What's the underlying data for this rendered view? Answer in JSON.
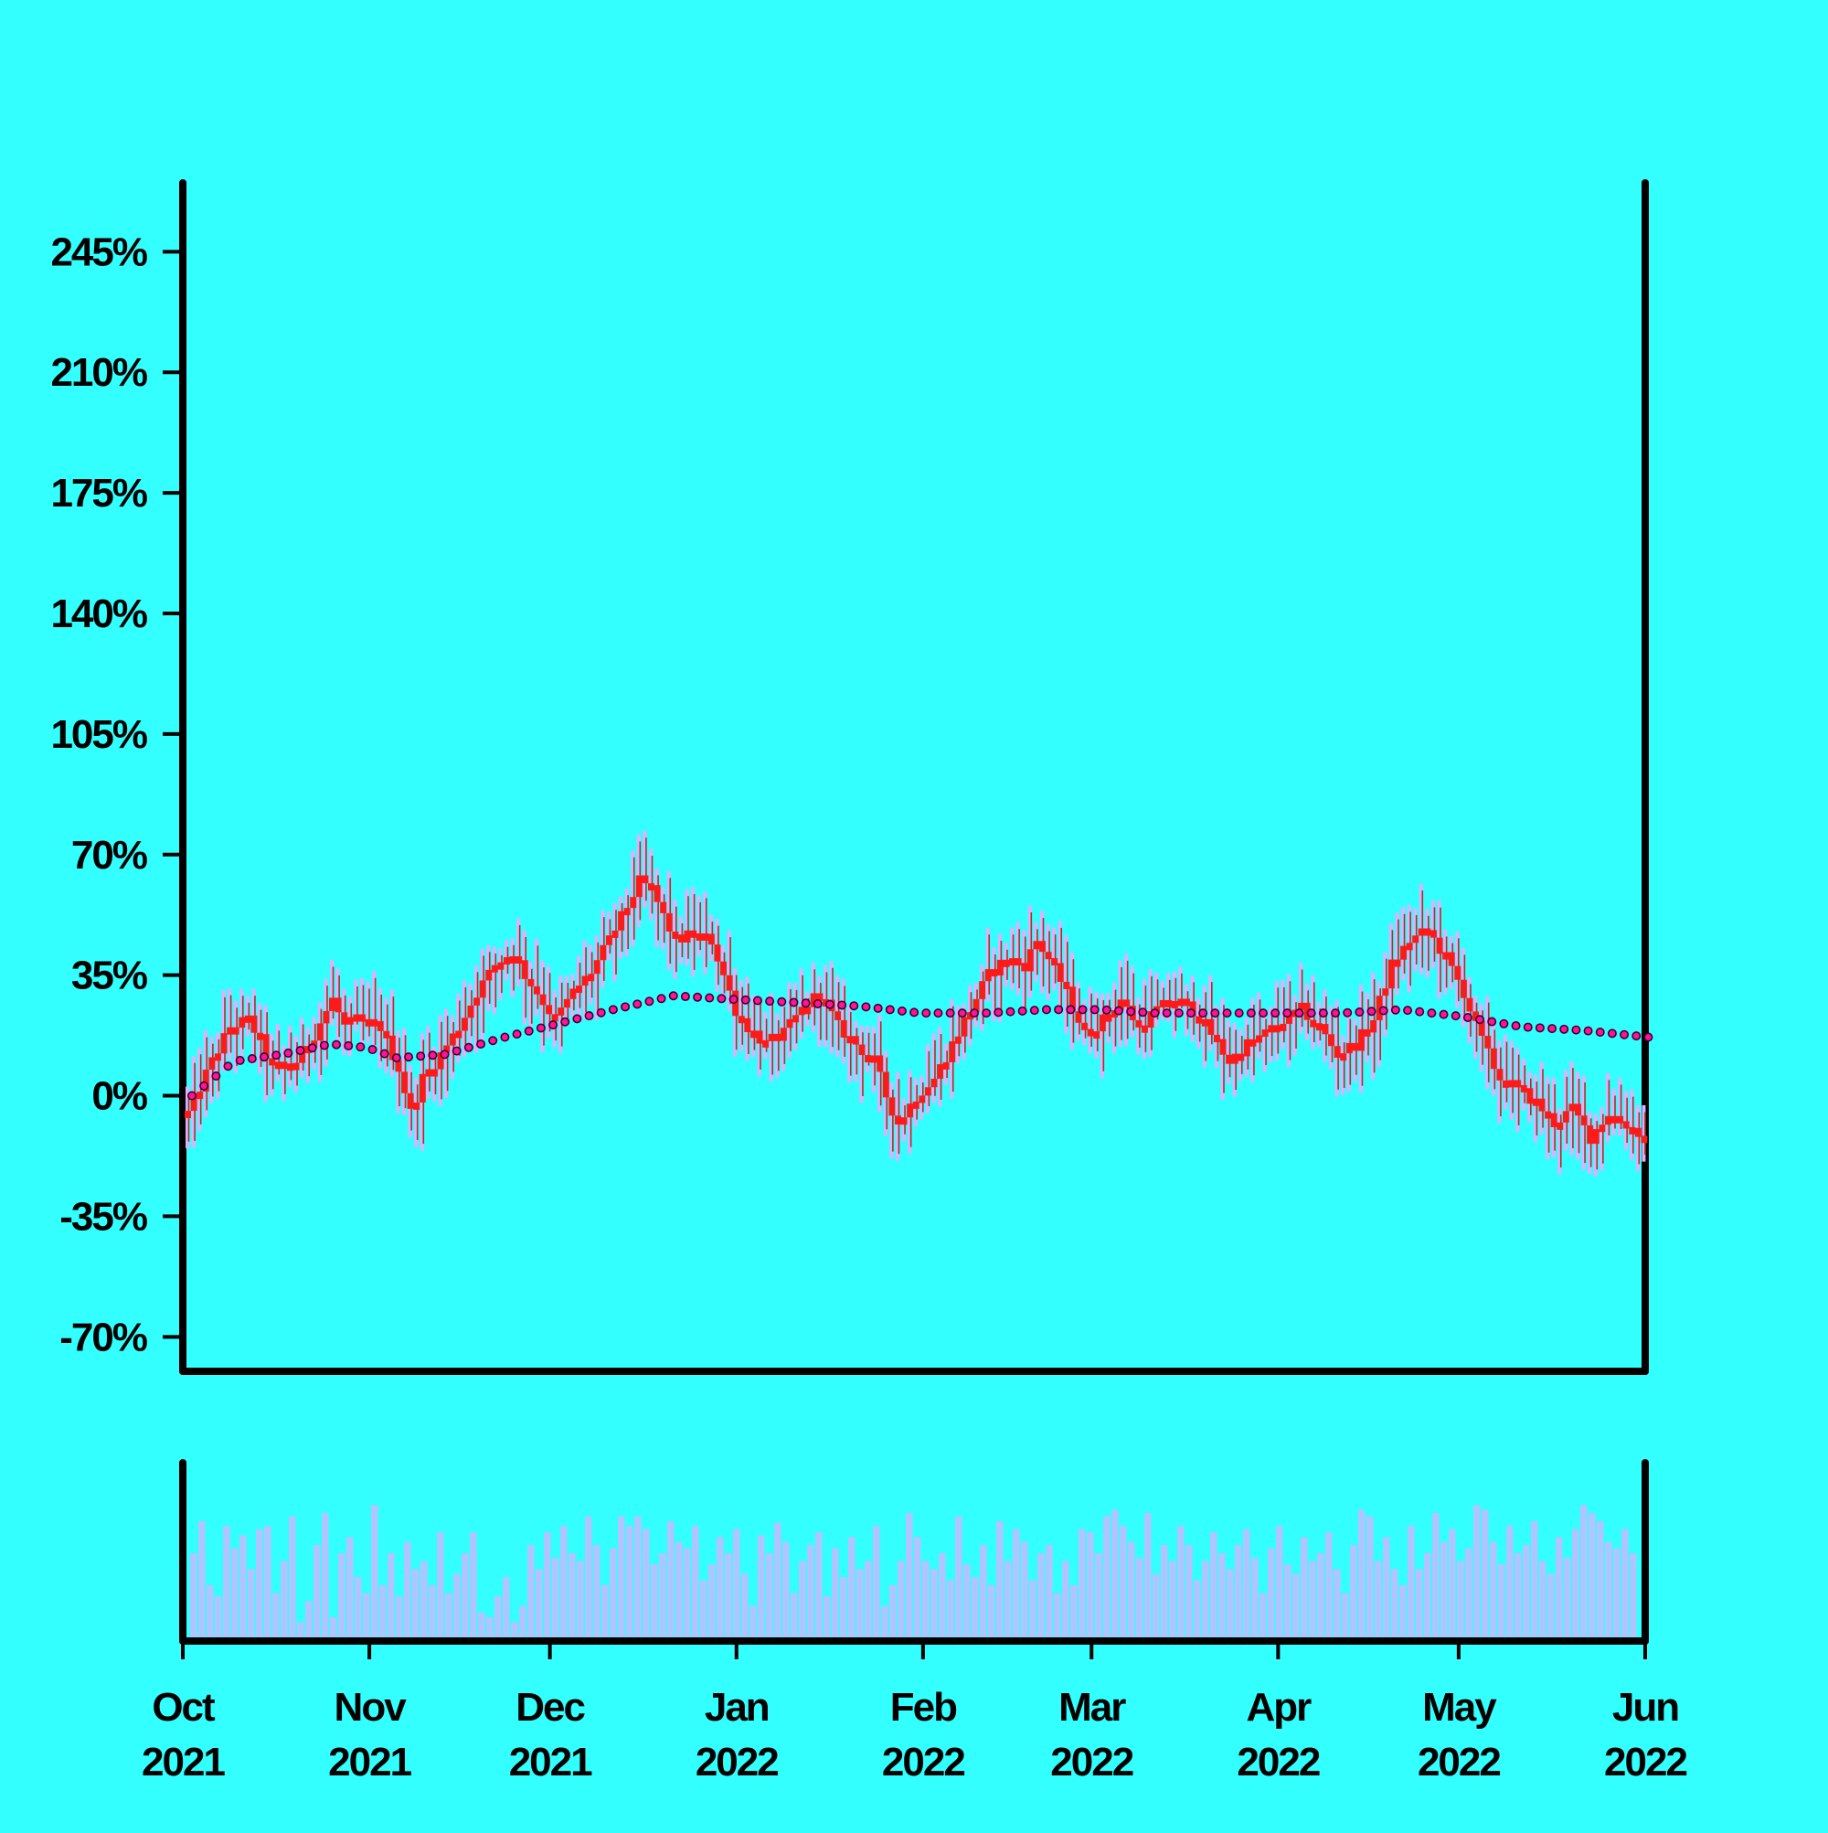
{
  "colors": {
    "background": "#33ffff",
    "axis": "#000000",
    "candle_body": "#ff1a1a",
    "candle_wick": "#b03020",
    "candle_shadow": "#e0b0ff",
    "moving_average": "#ff1493",
    "volume": "#b0c4ff"
  },
  "chart_data": {
    "type": "candlestick",
    "title": "",
    "xlabel": "",
    "ylabel": "",
    "y_axis": {
      "ylim": [
        -80,
        265
      ],
      "ticks": [
        -70,
        -35,
        0,
        35,
        70,
        105,
        140,
        175,
        210,
        245
      ],
      "tick_labels": [
        "-70%",
        "-35%",
        "0%",
        "35%",
        "70%",
        "105%",
        "140%",
        "175%",
        "210%",
        "245%"
      ]
    },
    "x_axis": {
      "start": "2021-10-01",
      "end": "2022-06-01",
      "ticks": [
        {
          "date": "2021-10-01",
          "month": "Oct",
          "year": "2021"
        },
        {
          "date": "2021-11-01",
          "month": "Nov",
          "year": "2021"
        },
        {
          "date": "2021-12-01",
          "month": "Dec",
          "year": "2021"
        },
        {
          "date": "2022-01-01",
          "month": "Jan",
          "year": "2022"
        },
        {
          "date": "2022-02-01",
          "month": "Feb",
          "year": "2022"
        },
        {
          "date": "2022-03-01",
          "month": "Mar",
          "year": "2022"
        },
        {
          "date": "2022-04-01",
          "month": "Apr",
          "year": "2022"
        },
        {
          "date": "2022-05-01",
          "month": "May",
          "year": "2022"
        },
        {
          "date": "2022-06-01",
          "month": "Jun",
          "year": "2022"
        }
      ]
    },
    "series": [
      {
        "kind": "close",
        "points": [
          [
            "2021-10-01",
            -5
          ],
          [
            "2021-10-05",
            10
          ],
          [
            "2021-10-08",
            20
          ],
          [
            "2021-10-11",
            22
          ],
          [
            "2021-10-13",
            16
          ],
          [
            "2021-10-15",
            8
          ],
          [
            "2021-10-19",
            10
          ],
          [
            "2021-10-22",
            18
          ],
          [
            "2021-10-25",
            28
          ],
          [
            "2021-10-27",
            20
          ],
          [
            "2021-10-29",
            22
          ],
          [
            "2021-11-02",
            20
          ],
          [
            "2021-11-05",
            8
          ],
          [
            "2021-11-07",
            -5
          ],
          [
            "2021-11-09",
            5
          ],
          [
            "2021-11-12",
            12
          ],
          [
            "2021-11-15",
            20
          ],
          [
            "2021-11-18",
            30
          ],
          [
            "2021-11-21",
            38
          ],
          [
            "2021-11-24",
            42
          ],
          [
            "2021-11-26",
            35
          ],
          [
            "2021-11-28",
            30
          ],
          [
            "2021-12-01",
            22
          ],
          [
            "2021-12-04",
            30
          ],
          [
            "2021-12-07",
            36
          ],
          [
            "2021-12-10",
            45
          ],
          [
            "2021-12-13",
            55
          ],
          [
            "2021-12-15",
            62
          ],
          [
            "2021-12-17",
            60
          ],
          [
            "2021-12-19",
            52
          ],
          [
            "2021-12-21",
            45
          ],
          [
            "2021-12-24",
            47
          ],
          [
            "2021-12-27",
            45
          ],
          [
            "2021-12-29",
            35
          ],
          [
            "2021-12-31",
            25
          ],
          [
            "2022-01-02",
            20
          ],
          [
            "2022-01-05",
            15
          ],
          [
            "2022-01-08",
            18
          ],
          [
            "2022-01-11",
            25
          ],
          [
            "2022-01-14",
            30
          ],
          [
            "2022-01-17",
            20
          ],
          [
            "2022-01-20",
            15
          ],
          [
            "2022-01-23",
            10
          ],
          [
            "2022-01-25",
            0
          ],
          [
            "2022-01-27",
            -8
          ],
          [
            "2022-01-30",
            0
          ],
          [
            "2022-02-02",
            5
          ],
          [
            "2022-02-05",
            15
          ],
          [
            "2022-02-08",
            25
          ],
          [
            "2022-02-11",
            35
          ],
          [
            "2022-02-14",
            40
          ],
          [
            "2022-02-17",
            38
          ],
          [
            "2022-02-19",
            45
          ],
          [
            "2022-02-21",
            40
          ],
          [
            "2022-02-24",
            30
          ],
          [
            "2022-02-27",
            18
          ],
          [
            "2022-03-02",
            22
          ],
          [
            "2022-03-05",
            28
          ],
          [
            "2022-03-08",
            20
          ],
          [
            "2022-03-11",
            25
          ],
          [
            "2022-03-14",
            28
          ],
          [
            "2022-03-17",
            25
          ],
          [
            "2022-03-20",
            18
          ],
          [
            "2022-03-23",
            10
          ],
          [
            "2022-03-26",
            15
          ],
          [
            "2022-03-29",
            18
          ],
          [
            "2022-04-01",
            22
          ],
          [
            "2022-04-04",
            25
          ],
          [
            "2022-04-07",
            20
          ],
          [
            "2022-04-10",
            12
          ],
          [
            "2022-04-13",
            15
          ],
          [
            "2022-04-16",
            22
          ],
          [
            "2022-04-19",
            38
          ],
          [
            "2022-04-22",
            45
          ],
          [
            "2022-04-25",
            48
          ],
          [
            "2022-04-28",
            40
          ],
          [
            "2022-05-01",
            30
          ],
          [
            "2022-05-03",
            20
          ],
          [
            "2022-05-05",
            12
          ],
          [
            "2022-05-07",
            5
          ],
          [
            "2022-05-10",
            2
          ],
          [
            "2022-05-13",
            -2
          ],
          [
            "2022-05-16",
            -8
          ],
          [
            "2022-05-19",
            -4
          ],
          [
            "2022-05-22",
            -12
          ],
          [
            "2022-05-25",
            -5
          ],
          [
            "2022-05-28",
            -8
          ],
          [
            "2022-05-31",
            -12
          ]
        ]
      },
      {
        "kind": "moving_average",
        "points": [
          [
            "2021-10-01",
            0
          ],
          [
            "2021-10-08",
            10
          ],
          [
            "2021-10-16",
            12
          ],
          [
            "2021-10-24",
            15
          ],
          [
            "2021-10-30",
            14
          ],
          [
            "2021-11-04",
            11
          ],
          [
            "2021-11-12",
            12
          ],
          [
            "2021-11-22",
            17
          ],
          [
            "2021-12-01",
            21
          ],
          [
            "2021-12-10",
            25
          ],
          [
            "2021-12-20",
            29
          ],
          [
            "2021-12-30",
            28
          ],
          [
            "2022-01-10",
            27
          ],
          [
            "2022-01-20",
            26
          ],
          [
            "2022-01-30",
            24
          ],
          [
            "2022-02-10",
            24
          ],
          [
            "2022-02-20",
            25
          ],
          [
            "2022-03-01",
            25
          ],
          [
            "2022-03-10",
            24
          ],
          [
            "2022-03-20",
            24
          ],
          [
            "2022-03-30",
            24
          ],
          [
            "2022-04-10",
            24
          ],
          [
            "2022-04-20",
            25
          ],
          [
            "2022-04-30",
            23
          ],
          [
            "2022-05-10",
            20
          ],
          [
            "2022-05-20",
            19
          ],
          [
            "2022-05-31",
            17
          ]
        ]
      }
    ],
    "volume_levels": [
      0.55,
      0.75,
      0.35,
      0.28,
      0.72,
      0.58,
      0.66,
      0.45,
      0.7,
      0.72,
      0.3,
      0.5,
      0.78,
      0.12,
      0.25,
      0.6,
      0.8,
      0.15,
      0.55,
      0.65,
      0.4,
      0.3,
      0.85,
      0.35,
      0.55,
      0.28,
      0.62,
      0.45,
      0.5,
      0.35,
      0.68,
      0.3,
      0.42,
      0.55,
      0.68,
      0.18,
      0.15,
      0.28,
      0.4,
      0.12,
      0.22,
      0.6,
      0.45,
      0.68,
      0.52,
      0.72,
      0.55,
      0.5,
      0.78,
      0.6,
      0.35,
      0.58,
      0.78,
      0.72,
      0.78,
      0.7,
      0.48,
      0.55,
      0.75,
      0.62,
      0.58,
      0.72,
      0.38,
      0.48,
      0.65,
      0.55,
      0.7,
      0.42,
      0.22,
      0.66,
      0.55,
      0.74,
      0.62,
      0.3,
      0.5,
      0.6,
      0.68,
      0.28,
      0.58,
      0.4,
      0.65,
      0.45,
      0.5,
      0.72,
      0.22,
      0.35,
      0.5,
      0.8,
      0.65,
      0.5,
      0.45,
      0.55,
      0.38,
      0.78,
      0.48,
      0.4,
      0.6,
      0.35,
      0.75,
      0.5,
      0.7,
      0.62,
      0.38,
      0.55,
      0.6,
      0.3,
      0.5,
      0.35,
      0.7,
      0.68,
      0.55,
      0.78,
      0.82,
      0.72,
      0.62,
      0.52,
      0.8,
      0.42,
      0.6,
      0.5,
      0.72,
      0.6,
      0.38,
      0.5,
      0.68,
      0.55,
      0.45,
      0.6,
      0.7,
      0.52,
      0.3,
      0.58,
      0.72,
      0.48,
      0.42,
      0.65,
      0.5,
      0.55,
      0.68,
      0.45,
      0.3,
      0.6,
      0.82,
      0.78,
      0.5,
      0.65,
      0.45,
      0.35,
      0.72,
      0.45,
      0.55,
      0.8,
      0.62,
      0.7,
      0.5,
      0.58,
      0.85,
      0.82,
      0.62,
      0.48,
      0.72,
      0.55,
      0.6,
      0.75,
      0.5,
      0.42,
      0.65,
      0.52,
      0.7,
      0.85,
      0.8,
      0.75,
      0.62,
      0.58,
      0.7,
      0.55
    ]
  }
}
